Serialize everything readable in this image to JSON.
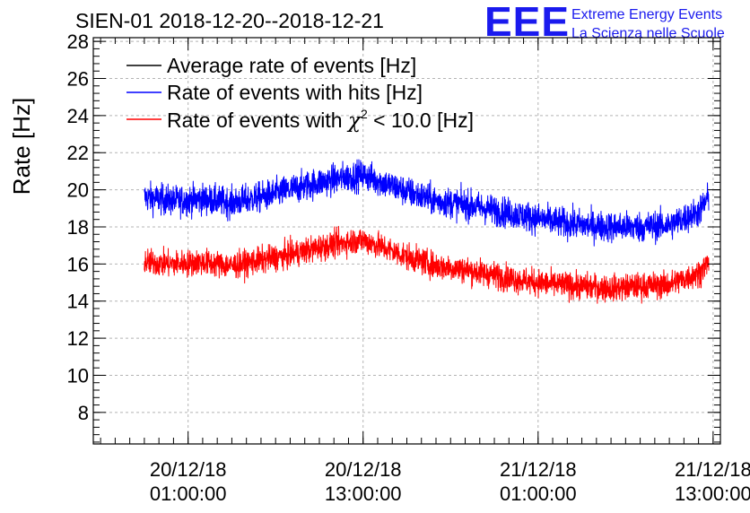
{
  "title": "SIEN-01 2018-12-20--2018-12-21",
  "logo": {
    "letters": "EEE",
    "line1": "Extreme Energy Events",
    "line2": "La Scienza nelle Scuole"
  },
  "colors": {
    "black": "#000000",
    "blue": "#0000ff",
    "red": "#ff0000"
  },
  "chart_data": {
    "type": "line",
    "title": "SIEN-01 2018-12-20--2018-12-21",
    "ylabel": "Rate [Hz]",
    "xlabel": "",
    "ylim": [
      6.3,
      28.2
    ],
    "yticks": [
      8,
      10,
      12,
      14,
      16,
      18,
      20,
      22,
      24,
      26,
      28
    ],
    "xlim_hours": [
      -6.5,
      36.5
    ],
    "xticks": [
      {
        "hour": 0,
        "date": "20/12/18",
        "time": "01:00:00"
      },
      {
        "hour": 12,
        "date": "20/12/18",
        "time": "13:00:00"
      },
      {
        "hour": 24,
        "date": "21/12/18",
        "time": "01:00:00"
      },
      {
        "hour": 36,
        "date": "21/12/18",
        "time": "13:00:00"
      }
    ],
    "grid": true,
    "legend_position": "top-left",
    "x_hours": [
      -3.0,
      -1.0,
      1.0,
      3.0,
      5.0,
      7.0,
      9.0,
      11.0,
      12.0,
      13.0,
      15.0,
      17.0,
      19.0,
      21.0,
      23.0,
      25.0,
      27.0,
      29.0,
      31.0,
      33.0,
      35.0,
      35.7
    ],
    "series": [
      {
        "name": "Average rate of events [Hz]",
        "color": "#000000",
        "values": []
      },
      {
        "name": "Rate of events with hits [Hz]",
        "color": "#0000ff",
        "noise": 0.8,
        "values": [
          19.6,
          19.4,
          19.5,
          19.3,
          19.6,
          20.0,
          20.4,
          20.7,
          20.8,
          20.5,
          19.9,
          19.4,
          19.2,
          18.9,
          18.6,
          18.3,
          18.1,
          18.0,
          18.0,
          18.1,
          18.8,
          19.6
        ]
      },
      {
        "name": "Rate of events with χ² < 10.0 [Hz]",
        "color": "#ff0000",
        "noise": 0.7,
        "values": [
          16.1,
          16.0,
          16.1,
          15.9,
          16.2,
          16.5,
          16.9,
          17.2,
          17.3,
          17.0,
          16.4,
          15.9,
          15.7,
          15.4,
          15.1,
          14.9,
          14.8,
          14.7,
          14.8,
          14.9,
          15.5,
          16.1
        ]
      }
    ],
    "legend": [
      {
        "text": "Average rate of events [Hz]",
        "color": "#000000"
      },
      {
        "text": "Rate of events with hits [Hz]",
        "color": "#0000ff"
      },
      {
        "pre": "Rate of events with ",
        "chi": "χ",
        "sup": "2",
        "post": " < 10.0 [Hz]",
        "color": "#ff0000"
      }
    ]
  }
}
